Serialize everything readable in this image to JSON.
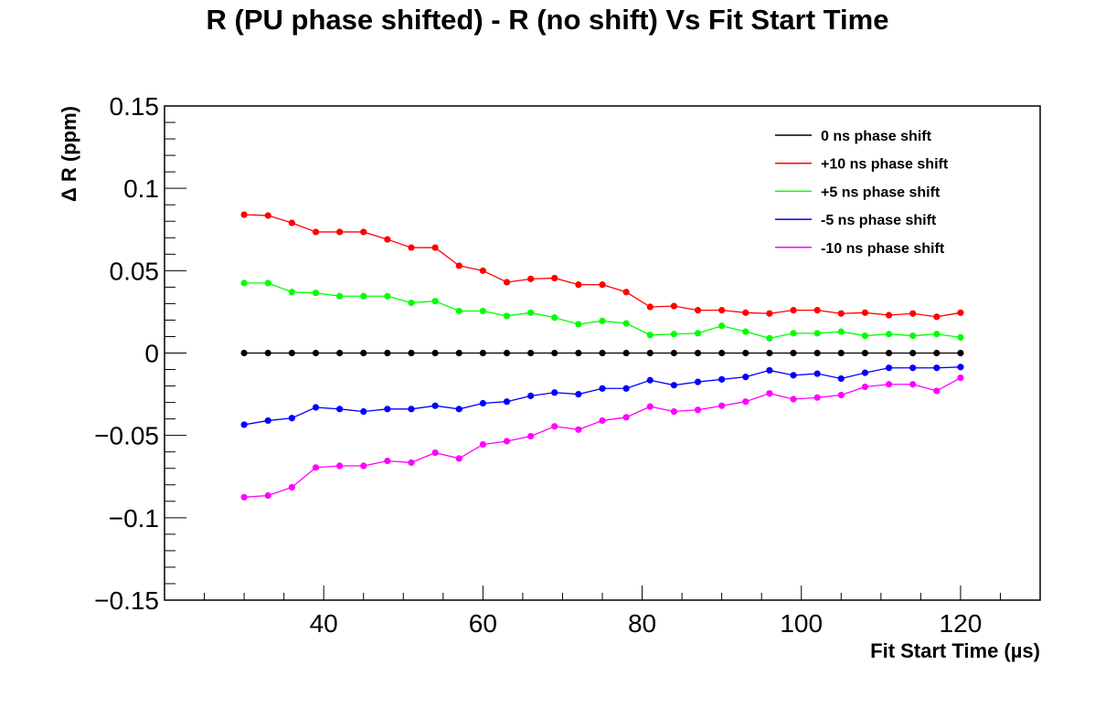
{
  "chart_data": {
    "type": "line",
    "title": "R (PU phase shifted) - R (no shift) Vs Fit Start Time",
    "xlabel": "Fit Start Time (µs)",
    "ylabel": "Δ R (ppm)",
    "xlim": [
      20,
      130
    ],
    "ylim": [
      -0.15,
      0.15
    ],
    "x_ticks": [
      40,
      60,
      80,
      100,
      120
    ],
    "x_tick_labels": [
      "40",
      "60",
      "80",
      "100",
      "120"
    ],
    "y_ticks": [
      -0.15,
      -0.1,
      -0.05,
      0,
      0.05,
      0.1,
      0.15
    ],
    "y_tick_labels": [
      "−0.15",
      "−0.1",
      "−0.05",
      "0",
      "0.05",
      "0.1",
      "0.15"
    ],
    "grid": false,
    "legend_position": "top-right",
    "x": [
      30,
      33,
      36,
      39,
      42,
      45,
      48,
      51,
      54,
      57,
      60,
      63,
      66,
      69,
      72,
      75,
      78,
      81,
      84,
      87,
      90,
      93,
      96,
      99,
      102,
      105,
      108,
      111,
      114,
      117,
      120
    ],
    "series": [
      {
        "name": "0 ns phase shift",
        "color": "#000000",
        "values": [
          0,
          0,
          0,
          0,
          0,
          0,
          0,
          0,
          0,
          0,
          0,
          0,
          0,
          0,
          0,
          0,
          0,
          0,
          0,
          0,
          0,
          0,
          0,
          0,
          0,
          0,
          0,
          0,
          0,
          0,
          0
        ]
      },
      {
        "name": "+10 ns phase shift",
        "color": "#ff0000",
        "values": [
          0.084,
          0.0835,
          0.079,
          0.0735,
          0.0735,
          0.0735,
          0.069,
          0.064,
          0.064,
          0.053,
          0.05,
          0.043,
          0.045,
          0.0455,
          0.0415,
          0.0415,
          0.037,
          0.028,
          0.0285,
          0.026,
          0.026,
          0.0245,
          0.024,
          0.026,
          0.026,
          0.024,
          0.0245,
          0.023,
          0.024,
          0.022,
          0.0245
        ]
      },
      {
        "name": "+5 ns phase shift",
        "color": "#00ff00",
        "values": [
          0.0425,
          0.0425,
          0.037,
          0.0365,
          0.0345,
          0.0345,
          0.0345,
          0.0305,
          0.0315,
          0.0255,
          0.0255,
          0.0225,
          0.0245,
          0.0215,
          0.0175,
          0.0195,
          0.018,
          0.011,
          0.0115,
          0.012,
          0.0165,
          0.013,
          0.009,
          0.012,
          0.012,
          0.013,
          0.0105,
          0.0115,
          0.0105,
          0.0115,
          0.0095
        ]
      },
      {
        "name": "-5 ns phase shift",
        "color": "#0000ff",
        "values": [
          -0.0435,
          -0.041,
          -0.0395,
          -0.033,
          -0.034,
          -0.0355,
          -0.034,
          -0.034,
          -0.032,
          -0.034,
          -0.0305,
          -0.0295,
          -0.026,
          -0.024,
          -0.025,
          -0.0215,
          -0.0215,
          -0.0165,
          -0.0195,
          -0.0175,
          -0.016,
          -0.0145,
          -0.0105,
          -0.0135,
          -0.0125,
          -0.0155,
          -0.012,
          -0.009,
          -0.009,
          -0.009,
          -0.0085
        ]
      },
      {
        "name": "-10 ns phase shift",
        "color": "#ff00ff",
        "values": [
          -0.0875,
          -0.0865,
          -0.0815,
          -0.0695,
          -0.0685,
          -0.0685,
          -0.0655,
          -0.0665,
          -0.0605,
          -0.064,
          -0.0555,
          -0.0535,
          -0.0505,
          -0.0445,
          -0.0465,
          -0.041,
          -0.039,
          -0.0325,
          -0.0355,
          -0.0345,
          -0.032,
          -0.0295,
          -0.0245,
          -0.028,
          -0.027,
          -0.0255,
          -0.0205,
          -0.019,
          -0.019,
          -0.023,
          -0.015
        ]
      }
    ]
  }
}
